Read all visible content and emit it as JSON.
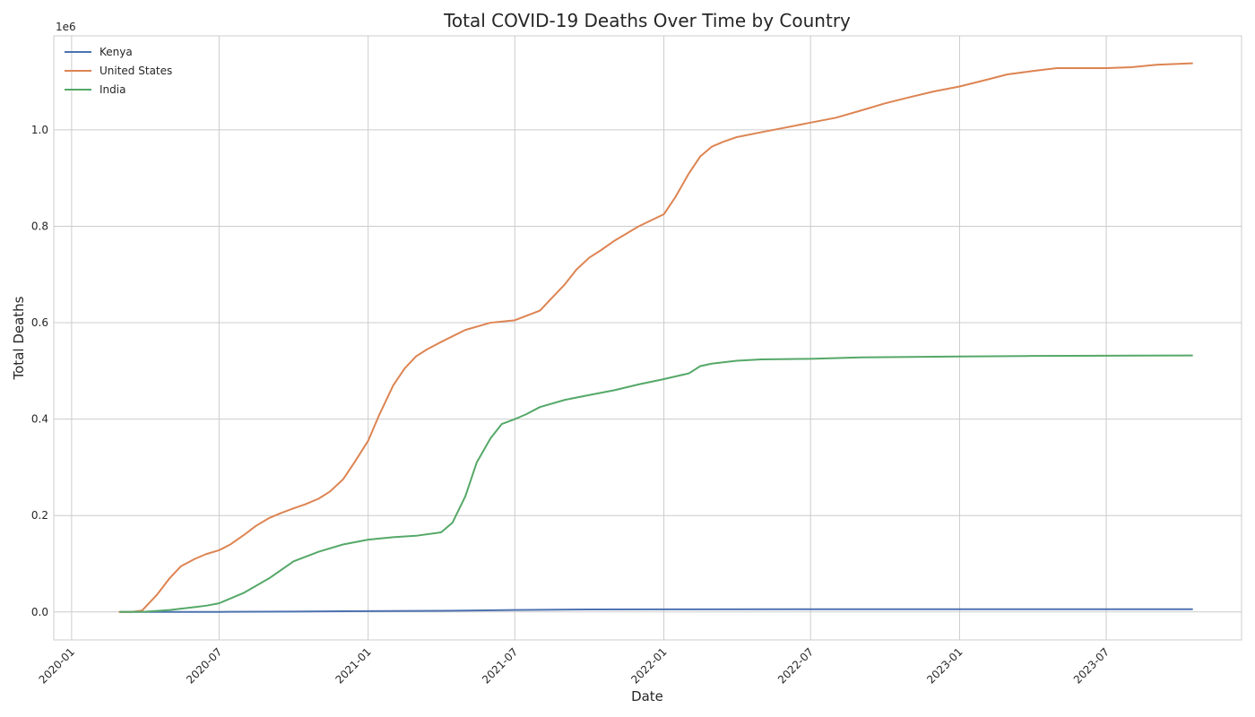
{
  "chart_data": {
    "type": "line",
    "title": "Total COVID-19 Deaths Over Time by Country",
    "xlabel": "Date",
    "ylabel": "Total Deaths",
    "y_offset_label": "1e6",
    "x_ticks": [
      "2020-01",
      "2020-07",
      "2021-01",
      "2021-07",
      "2022-01",
      "2022-07",
      "2023-01",
      "2023-07"
    ],
    "y_ticks": [
      "0.0",
      "0.2",
      "0.4",
      "0.6",
      "0.8",
      "1.0"
    ],
    "y_tick_values": [
      0,
      200000,
      400000,
      600000,
      800000,
      1000000
    ],
    "xlim": [
      "2019-12-10",
      "2023-12-15"
    ],
    "ylim": [
      -58000,
      1195000
    ],
    "grid": true,
    "legend_position": "top-left",
    "series": [
      {
        "name": "Kenya",
        "color": "#4c72b0",
        "x": [
          "2020-03-01",
          "2020-07-01",
          "2020-10-01",
          "2021-01-01",
          "2021-04-01",
          "2021-07-01",
          "2021-10-01",
          "2022-01-01",
          "2022-07-01",
          "2023-01-01",
          "2023-07-01",
          "2023-10-15"
        ],
        "values": [
          0,
          200,
          800,
          1700,
          2400,
          4000,
          5200,
          5400,
          5670,
          5680,
          5690,
          5700
        ]
      },
      {
        "name": "United States",
        "color": "#dd8452",
        "x": [
          "2020-02-29",
          "2020-03-15",
          "2020-03-28",
          "2020-04-15",
          "2020-05-01",
          "2020-05-15",
          "2020-06-01",
          "2020-06-15",
          "2020-07-01",
          "2020-07-15",
          "2020-08-01",
          "2020-08-15",
          "2020-09-01",
          "2020-09-15",
          "2020-10-01",
          "2020-10-15",
          "2020-11-01",
          "2020-11-15",
          "2020-12-01",
          "2020-12-15",
          "2021-01-01",
          "2021-01-15",
          "2021-02-01",
          "2021-02-15",
          "2021-03-01",
          "2021-03-15",
          "2021-04-01",
          "2021-05-01",
          "2021-06-01",
          "2021-07-01",
          "2021-08-01",
          "2021-08-15",
          "2021-09-01",
          "2021-09-15",
          "2021-10-01",
          "2021-10-15",
          "2021-11-01",
          "2021-12-01",
          "2022-01-01",
          "2022-01-15",
          "2022-02-01",
          "2022-02-15",
          "2022-03-01",
          "2022-03-15",
          "2022-04-01",
          "2022-05-01",
          "2022-06-01",
          "2022-07-01",
          "2022-08-01",
          "2022-09-01",
          "2022-10-01",
          "2022-11-01",
          "2022-12-01",
          "2023-01-01",
          "2023-02-01",
          "2023-03-01",
          "2023-04-01",
          "2023-05-01",
          "2023-06-01",
          "2023-07-01",
          "2023-08-01",
          "2023-09-01",
          "2023-10-15"
        ],
        "values": [
          0,
          0,
          3000,
          35000,
          70000,
          95000,
          110000,
          120000,
          128000,
          140000,
          160000,
          178000,
          195000,
          205000,
          215000,
          223000,
          235000,
          250000,
          275000,
          310000,
          355000,
          410000,
          470000,
          505000,
          530000,
          545000,
          560000,
          585000,
          600000,
          605000,
          625000,
          650000,
          680000,
          710000,
          735000,
          750000,
          770000,
          800000,
          825000,
          860000,
          910000,
          945000,
          965000,
          975000,
          985000,
          995000,
          1005000,
          1015000,
          1025000,
          1040000,
          1055000,
          1068000,
          1080000,
          1090000,
          1103000,
          1115000,
          1122000,
          1128000,
          1128000,
          1128000,
          1130000,
          1135000,
          1138000
        ]
      },
      {
        "name": "India",
        "color": "#55a868",
        "x": [
          "2020-03-01",
          "2020-04-01",
          "2020-05-01",
          "2020-06-01",
          "2020-06-15",
          "2020-07-01",
          "2020-08-01",
          "2020-09-01",
          "2020-10-01",
          "2020-11-01",
          "2020-12-01",
          "2021-01-01",
          "2021-02-01",
          "2021-03-01",
          "2021-04-01",
          "2021-04-15",
          "2021-05-01",
          "2021-05-15",
          "2021-06-01",
          "2021-06-15",
          "2021-07-01",
          "2021-07-15",
          "2021-08-01",
          "2021-09-01",
          "2021-10-01",
          "2021-11-01",
          "2021-12-01",
          "2022-01-01",
          "2022-02-01",
          "2022-02-15",
          "2022-03-01",
          "2022-04-01",
          "2022-05-01",
          "2022-07-01",
          "2022-09-01",
          "2022-11-01",
          "2023-01-01",
          "2023-04-01",
          "2023-07-01",
          "2023-10-15"
        ],
        "values": [
          0,
          500,
          4000,
          10000,
          13000,
          18000,
          40000,
          70000,
          105000,
          125000,
          140000,
          150000,
          155000,
          158000,
          165000,
          185000,
          240000,
          310000,
          360000,
          390000,
          400000,
          410000,
          425000,
          440000,
          450000,
          460000,
          472000,
          483000,
          495000,
          510000,
          515000,
          521000,
          524000,
          525000,
          528000,
          529000,
          530000,
          531000,
          531500,
          532000
        ]
      }
    ]
  }
}
